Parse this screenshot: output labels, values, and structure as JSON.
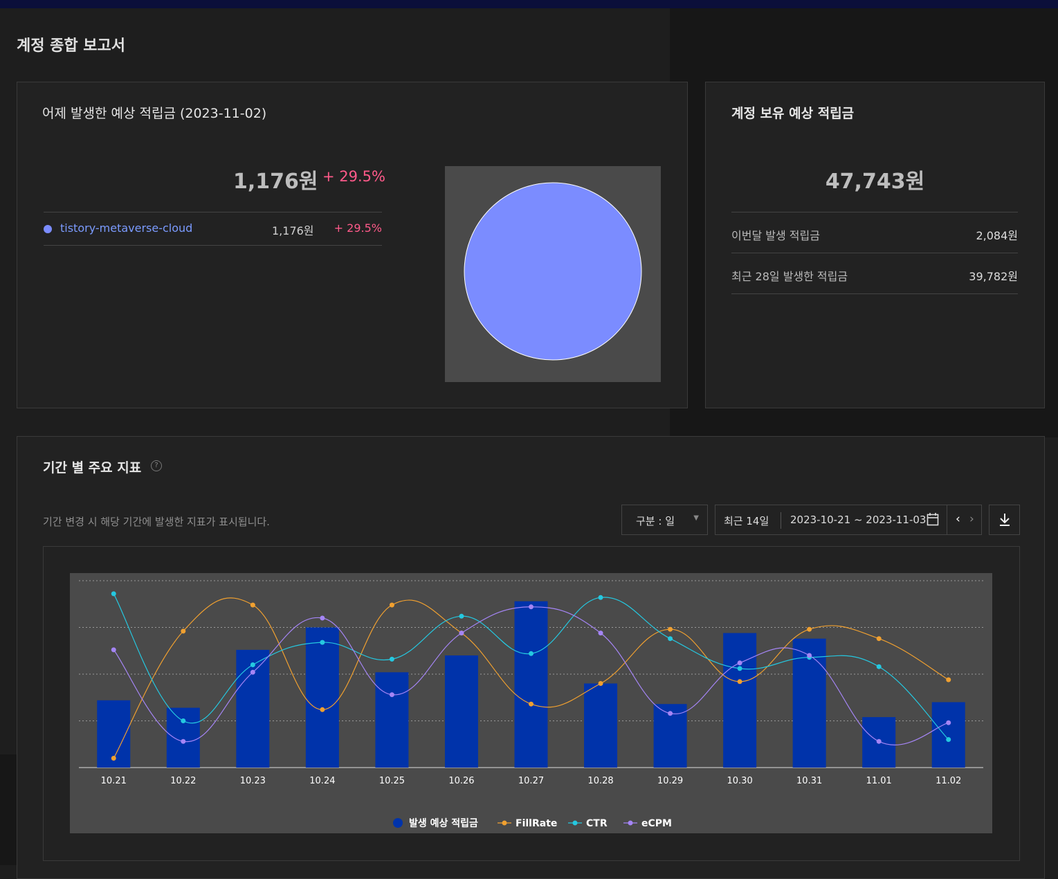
{
  "page_title": "계정 종합 보고서",
  "yesterday": {
    "title": "어제 발생한 예상 적립금 (2023-11-02)",
    "amount": "1,176원",
    "change": "+ 29.5%",
    "site": {
      "name": "tistory-metaverse-cloud",
      "amount": "1,176원",
      "change": "+ 29.5%",
      "color": "#7b8cff"
    },
    "pie_color": "#7b8cff"
  },
  "balance": {
    "title": "계정 보유 예상 적립금",
    "amount": "47,743원",
    "rows": [
      {
        "label": "이번달 발생 적립금",
        "value": "2,084원"
      },
      {
        "label": "최근 28일 발생한 적립금",
        "value": "39,782원"
      }
    ]
  },
  "metrics": {
    "title": "기간 별 주요 지표",
    "help_icon": "help-icon",
    "help_glyph": "?",
    "description": "기간 변경 시 해당 기간에 발생한 지표가 표시됩니다.",
    "unit_select": "구분 : 일",
    "range_preset": "최근 14일",
    "date_range": "2023-10-21 ~ 2023-11-03",
    "prev_glyph": "‹",
    "next_glyph": "›",
    "calendar_icon": "calendar-icon",
    "download_icon": "download-icon"
  },
  "chart_data": {
    "type": "bar",
    "categories": [
      "10.21",
      "10.22",
      "10.23",
      "10.24",
      "10.25",
      "10.26",
      "10.27",
      "10.28",
      "10.29",
      "10.30",
      "10.31",
      "11.01",
      "11.02"
    ],
    "series": [
      {
        "name": "발생 예상 적립금",
        "type": "bar",
        "color": "#0033aa",
        "values": [
          36,
          32,
          63,
          75,
          51,
          60,
          89,
          45,
          34,
          72,
          69,
          27,
          35
        ]
      },
      {
        "name": "FillRate",
        "type": "line",
        "color": "#f0a030",
        "values": [
          5,
          73,
          87,
          31,
          87,
          72,
          34,
          45,
          74,
          46,
          74,
          69,
          47
        ]
      },
      {
        "name": "CTR",
        "type": "line",
        "color": "#25c8e0",
        "values": [
          93,
          25,
          55,
          67,
          58,
          81,
          61,
          91,
          69,
          53,
          59,
          54,
          15
        ]
      },
      {
        "name": "eCPM",
        "type": "line",
        "color": "#a585f5",
        "values": [
          63,
          14,
          51,
          80,
          39,
          72,
          86,
          72,
          29,
          56,
          60,
          14,
          24
        ]
      }
    ],
    "ylim": [
      0,
      100
    ],
    "grid": true,
    "legend_position": "bottom"
  }
}
